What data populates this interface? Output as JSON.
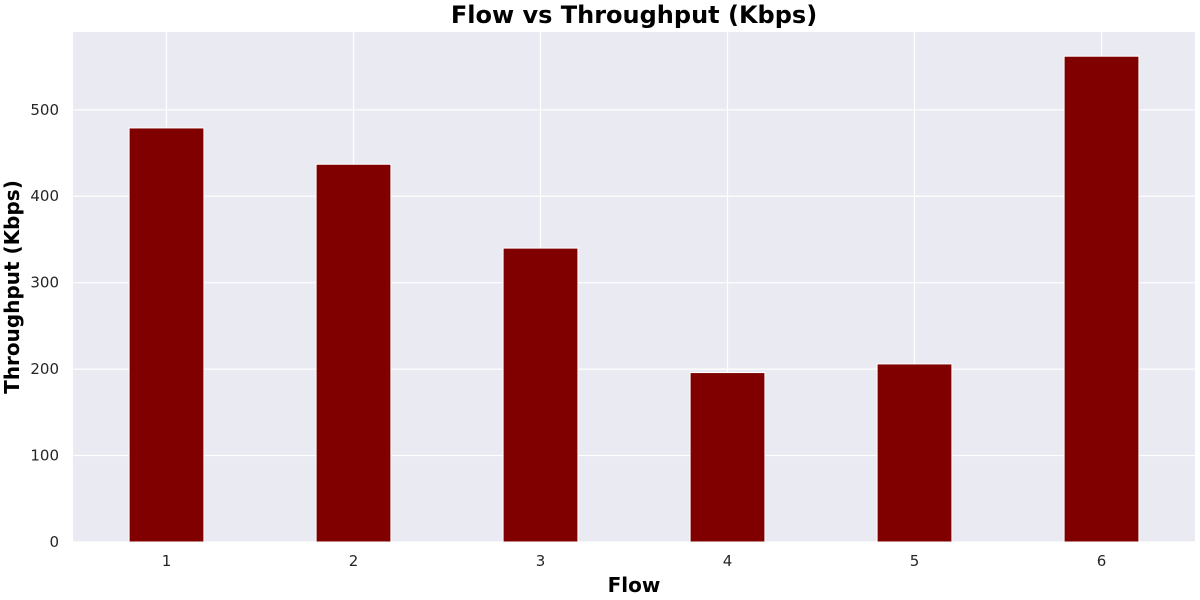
{
  "chart_data": {
    "type": "bar",
    "title": "Flow vs Throughput (Kbps)",
    "xlabel": "Flow",
    "ylabel": "Throughput (Kbps)",
    "categories": [
      "1",
      "2",
      "3",
      "4",
      "5",
      "6"
    ],
    "values": [
      479,
      437,
      340,
      196,
      206,
      562
    ],
    "ylim": [
      0,
      590
    ],
    "yticks": [
      0,
      100,
      200,
      300,
      400,
      500
    ],
    "grid": true,
    "colors": {
      "bar": "#800000",
      "plot_background": "#eaeaf2",
      "grid": "#ffffff"
    }
  }
}
